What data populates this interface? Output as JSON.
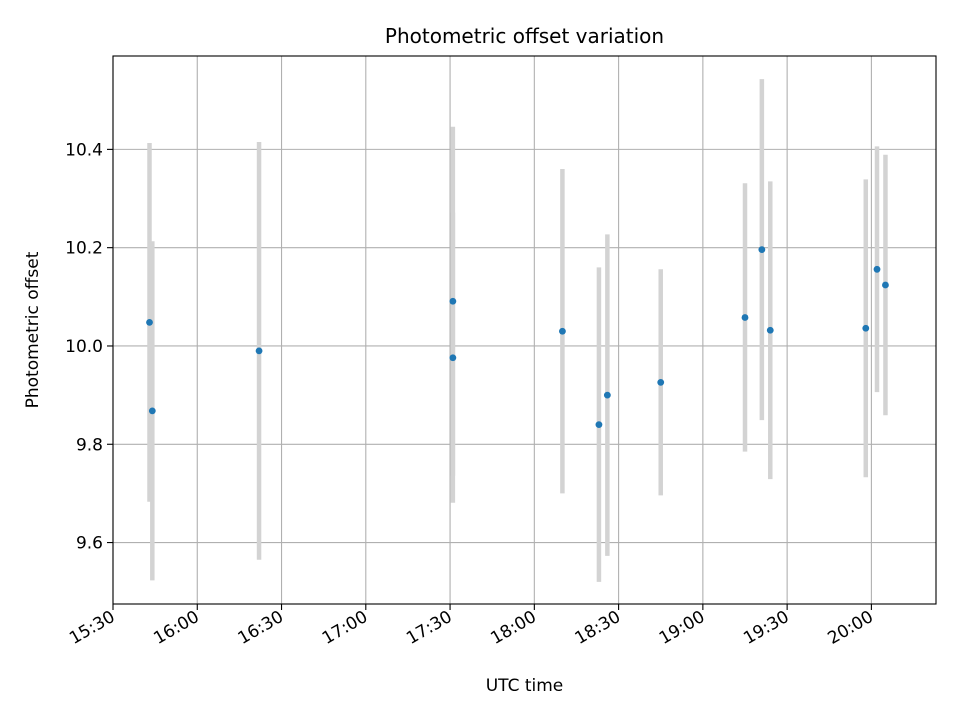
{
  "chart_data": {
    "type": "scatter",
    "title": "Photometric offset variation",
    "xlabel": "UTC time",
    "ylabel": "Photometric offset",
    "xlim": [
      "15:30",
      "20:23"
    ],
    "ylim": [
      9.475,
      10.59
    ],
    "grid": true,
    "x_ticks": [
      "15:30",
      "16:00",
      "16:30",
      "17:00",
      "17:30",
      "18:00",
      "18:30",
      "19:00",
      "19:30",
      "20:00"
    ],
    "y_ticks": [
      "9.6",
      "9.8",
      "10.0",
      "10.2",
      "10.4"
    ],
    "marker_color": "#1f77b4",
    "errorbar_color": "#d3d3d3",
    "series": [
      {
        "points": [
          {
            "x": "15:43",
            "y": 10.048,
            "yerr": 0.365
          },
          {
            "x": "15:44",
            "y": 9.868,
            "yerr": 0.345
          },
          {
            "x": "16:22",
            "y": 9.99,
            "yerr": 0.425
          },
          {
            "x": "17:31",
            "y": 9.976,
            "yerr": 0.295
          },
          {
            "x": "17:31",
            "y": 10.091,
            "yerr": 0.355
          },
          {
            "x": "18:10",
            "y": 10.03,
            "yerr": 0.33
          },
          {
            "x": "18:23",
            "y": 9.84,
            "yerr": 0.32
          },
          {
            "x": "18:26",
            "y": 9.9,
            "yerr": 0.327
          },
          {
            "x": "18:45",
            "y": 9.926,
            "yerr": 0.23
          },
          {
            "x": "19:15",
            "y": 10.058,
            "yerr": 0.273
          },
          {
            "x": "19:21",
            "y": 10.196,
            "yerr": 0.347
          },
          {
            "x": "19:24",
            "y": 10.032,
            "yerr": 0.303
          },
          {
            "x": "19:58",
            "y": 10.036,
            "yerr": 0.303
          },
          {
            "x": "20:02",
            "y": 10.156,
            "yerr": 0.25
          },
          {
            "x": "20:05",
            "y": 10.124,
            "yerr": 0.265
          }
        ]
      }
    ]
  }
}
